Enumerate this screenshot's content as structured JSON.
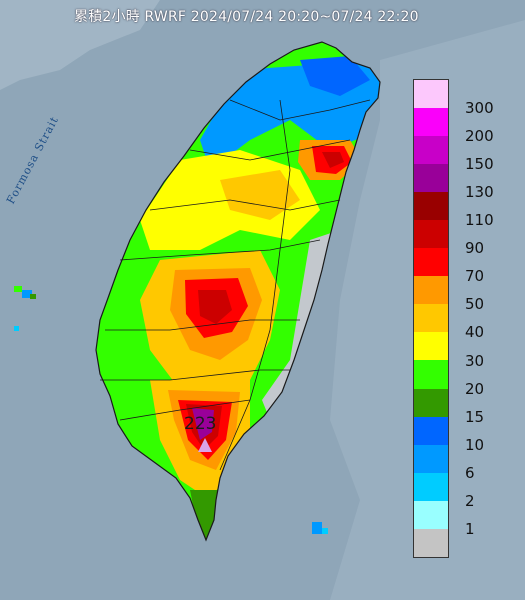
{
  "title": "累積2小時 RWRF 2024/07/24 20:20~07/24 22:20",
  "strait_label": "Formosa Strait",
  "max_value_label": "223",
  "colors": {
    "sea": "#8fa6b8",
    "sea_light": "#d9e4ee",
    "land_gray": "#c3c8cd"
  },
  "legend": {
    "items": [
      {
        "label": "300",
        "color": "#fcc8fc"
      },
      {
        "label": "200",
        "color": "#fa00fa"
      },
      {
        "label": "150",
        "color": "#c800c8"
      },
      {
        "label": "130",
        "color": "#990099"
      },
      {
        "label": "110",
        "color": "#990000"
      },
      {
        "label": "90",
        "color": "#cc0000"
      },
      {
        "label": "70",
        "color": "#ff0000"
      },
      {
        "label": "50",
        "color": "#ff9900"
      },
      {
        "label": "40",
        "color": "#ffc800"
      },
      {
        "label": "30",
        "color": "#ffff00"
      },
      {
        "label": "20",
        "color": "#33ff00"
      },
      {
        "label": "15",
        "color": "#339900"
      },
      {
        "label": "10",
        "color": "#0066ff"
      },
      {
        "label": "6",
        "color": "#0099ff"
      },
      {
        "label": "2",
        "color": "#00ccff"
      },
      {
        "label": "1",
        "color": "#99ffff"
      },
      {
        "label": "",
        "color": "#c4c4c4"
      }
    ]
  }
}
